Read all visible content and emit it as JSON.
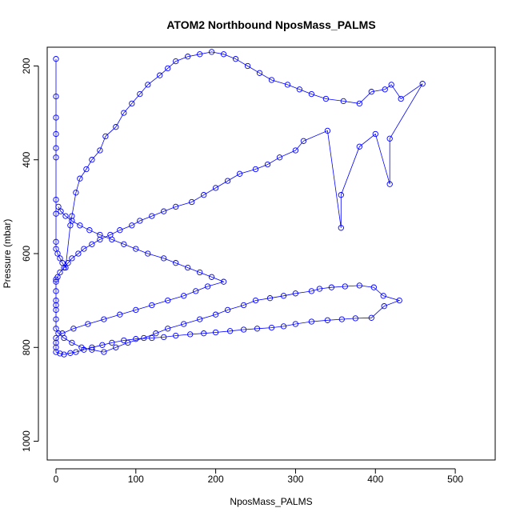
{
  "chart_data": {
    "type": "scatter",
    "title": "ATOM2 Northbound NposMass_PALMS",
    "xlabel": "NposMass_PALMS",
    "ylabel": "Pressure (mbar)",
    "xlim": [
      -11,
      550
    ],
    "ylim": [
      1040,
      160
    ],
    "y_reversed": true,
    "x_ticks": [
      0,
      100,
      200,
      300,
      400,
      500
    ],
    "x_tick_labels": [
      "0",
      "100",
      "200",
      "300",
      "400",
      "500"
    ],
    "y_ticks": [
      200,
      400,
      600,
      800,
      1000
    ],
    "y_tick_labels": [
      "200",
      "400",
      "600",
      "800",
      "1000"
    ],
    "grid": false,
    "legend": "none",
    "colors": {
      "series": "#0000ff",
      "axis": "#000000"
    },
    "series": [
      {
        "marker": "open-circle",
        "line": "connected",
        "x": [
          0,
          0,
          0,
          0,
          0,
          0,
          0,
          0,
          0,
          0,
          2,
          5,
          8,
          12,
          18,
          20,
          25,
          30,
          38,
          45,
          55,
          62,
          75,
          85,
          95,
          105,
          115,
          130,
          140,
          150,
          165,
          180,
          195,
          210,
          225,
          240,
          255,
          270,
          290,
          305,
          320,
          338,
          360,
          380,
          395,
          412,
          420,
          432,
          459,
          418,
          418,
          400,
          380,
          357,
          357,
          340,
          310,
          300,
          280,
          265,
          250,
          230,
          215,
          200,
          185,
          170,
          150,
          135,
          120,
          105,
          95,
          80,
          68,
          55,
          45,
          35,
          28,
          20,
          15,
          10,
          5,
          2,
          0,
          0,
          0,
          0,
          0,
          0,
          0,
          0,
          3,
          10,
          20,
          32,
          45,
          60,
          75,
          90,
          110,
          125,
          140,
          160,
          180,
          200,
          215,
          235,
          250,
          268,
          285,
          300,
          320,
          330,
          345,
          362,
          380,
          398,
          410,
          430,
          411,
          395,
          375,
          358,
          340,
          320,
          300,
          285,
          270,
          252,
          235,
          218,
          200,
          185,
          168,
          150,
          135,
          120,
          100,
          85,
          70,
          58,
          45,
          35,
          25,
          18,
          10,
          5,
          0,
          0,
          0,
          0,
          8,
          22,
          40,
          60,
          80,
          100,
          120,
          140,
          160,
          175,
          190,
          210,
          195,
          180,
          165,
          150,
          135,
          115,
          100,
          85,
          70,
          55,
          42,
          30,
          20,
          12,
          6,
          3
        ],
        "y": [
          185,
          265,
          310,
          345,
          375,
          395,
          485,
          515,
          575,
          590,
          600,
          610,
          620,
          630,
          540,
          520,
          470,
          440,
          420,
          400,
          380,
          350,
          330,
          300,
          280,
          260,
          240,
          220,
          205,
          190,
          180,
          175,
          170,
          175,
          185,
          200,
          215,
          230,
          240,
          250,
          260,
          270,
          275,
          280,
          255,
          250,
          240,
          270,
          238,
          355,
          452,
          345,
          372,
          475,
          545,
          338,
          360,
          380,
          395,
          410,
          420,
          430,
          445,
          460,
          475,
          490,
          500,
          510,
          520,
          530,
          540,
          550,
          560,
          570,
          580,
          590,
          600,
          610,
          620,
          630,
          640,
          650,
          655,
          660,
          680,
          700,
          710,
          720,
          740,
          760,
          770,
          780,
          790,
          800,
          805,
          810,
          800,
          790,
          780,
          770,
          760,
          750,
          740,
          730,
          720,
          710,
          700,
          695,
          690,
          685,
          680,
          675,
          672,
          670,
          668,
          672,
          690,
          700,
          712,
          737,
          738,
          740,
          742,
          745,
          750,
          755,
          758,
          760,
          762,
          765,
          768,
          770,
          772,
          775,
          778,
          780,
          782,
          785,
          790,
          795,
          800,
          805,
          810,
          812,
          815,
          813,
          810,
          800,
          790,
          780,
          770,
          760,
          750,
          740,
          730,
          720,
          710,
          700,
          690,
          680,
          670,
          660,
          650,
          640,
          630,
          620,
          610,
          600,
          590,
          580,
          570,
          560,
          550,
          540,
          530,
          520,
          510,
          500
        ]
      }
    ]
  }
}
